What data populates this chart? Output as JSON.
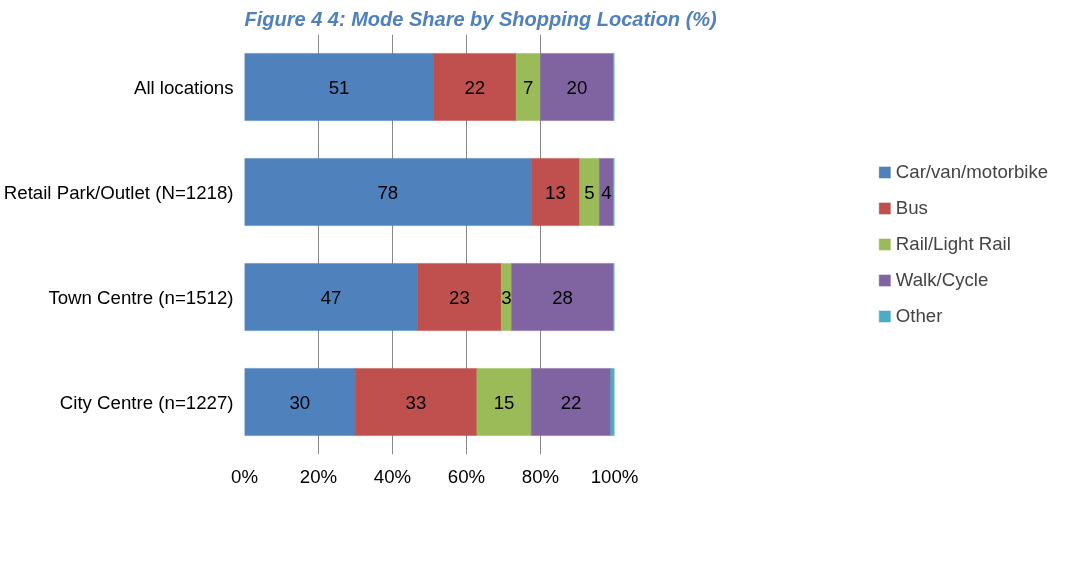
{
  "chart_data": {
    "type": "bar",
    "orientation": "horizontal",
    "stacked": true,
    "title": "Figure 4 4: Mode Share by Shopping Location (%)",
    "categories": [
      "All locations",
      "Retail Park/Outlet (N=1218)",
      "Town Centre (n=1512)",
      "City Centre (n=1227)"
    ],
    "series": [
      {
        "name": "Car/van/motorbike",
        "color": "#4f81bd",
        "values": [
          51.1,
          77.5,
          46.8,
          29.9
        ],
        "value_labels": [
          "51",
          "78",
          "47",
          "30"
        ]
      },
      {
        "name": "Bus",
        "color": "#c0504d",
        "values": [
          22.3,
          13.1,
          22.6,
          32.9
        ],
        "value_labels": [
          "22",
          "13",
          "23",
          "33"
        ]
      },
      {
        "name": "Rail/Light Rail",
        "color": "#9bbb59",
        "values": [
          6.6,
          5.3,
          2.8,
          14.7
        ],
        "value_labels": [
          "7",
          "5",
          "3",
          "15"
        ]
      },
      {
        "name": "Walk/Cycle",
        "color": "#8064a2",
        "values": [
          19.7,
          3.8,
          27.5,
          21.5
        ],
        "value_labels": [
          "20",
          "4",
          "28",
          "22"
        ]
      },
      {
        "name": "Other",
        "color": "#4bacc6",
        "values": [
          0.3,
          0.3,
          0.3,
          1.0
        ],
        "value_labels": [
          null,
          null,
          null,
          null
        ]
      }
    ],
    "xlim": [
      0,
      100
    ],
    "xticks": [
      {
        "value": 0,
        "label": "0%"
      },
      {
        "value": 20,
        "label": "20%"
      },
      {
        "value": 40,
        "label": "40%"
      },
      {
        "value": 60,
        "label": "60%"
      },
      {
        "value": 80,
        "label": "80%"
      },
      {
        "value": 100,
        "label": "100%"
      }
    ],
    "grid": "x",
    "legend": "right"
  }
}
